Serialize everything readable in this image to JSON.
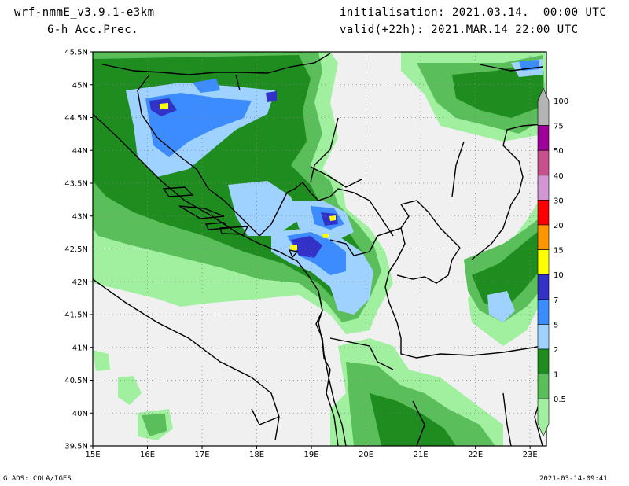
{
  "header": {
    "model": "wrf-nmmE_v3.9.1-e3km",
    "field": "6-h Acc.Prec.",
    "init": "initialisation: 2021.03.14.  00:00 UTC",
    "valid": "valid(+22h): 2021.MAR.14 22:00 UTC"
  },
  "map": {
    "lon_range": [
      15,
      23.3
    ],
    "lat_range": [
      39.5,
      45.5
    ],
    "lon_labels": [
      "15E",
      "16E",
      "17E",
      "18E",
      "19E",
      "20E",
      "21E",
      "22E",
      "23E"
    ],
    "lat_labels": [
      "45.5N",
      "45N",
      "44.5N",
      "44N",
      "43.5N",
      "43N",
      "42.5N",
      "42N",
      "41.5N",
      "41N",
      "40.5N",
      "40N",
      "39.5N"
    ],
    "sea_color": "#f0f0f0"
  },
  "legend": {
    "levels": [
      "100",
      "75",
      "50",
      "40",
      "30",
      "20",
      "15",
      "10",
      "7",
      "5",
      "2",
      "1",
      "0.5"
    ],
    "colors": [
      "#b4b4b4",
      "#a0009a",
      "#c8508c",
      "#d296d2",
      "#ff0000",
      "#ff9600",
      "#ffff00",
      "#3232c8",
      "#3c8cff",
      "#a0d2ff",
      "#1e8c1e",
      "#5abe5a",
      "#a0f0a0"
    ]
  },
  "footer": {
    "left": "GrADS: COLA/IGES",
    "right": "2021-03-14-09:41"
  }
}
